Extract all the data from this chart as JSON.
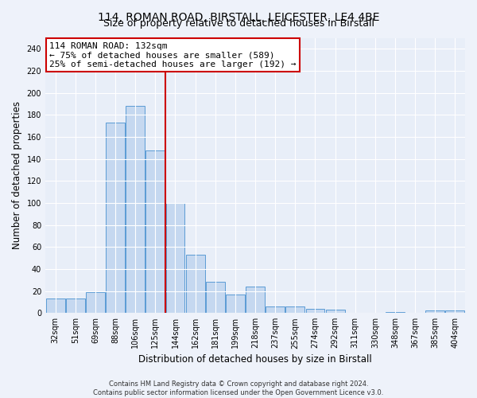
{
  "title1": "114, ROMAN ROAD, BIRSTALL, LEICESTER, LE4 4BE",
  "title2": "Size of property relative to detached houses in Birstall",
  "xlabel": "Distribution of detached houses by size in Birstall",
  "ylabel": "Number of detached properties",
  "categories": [
    "32sqm",
    "51sqm",
    "69sqm",
    "88sqm",
    "106sqm",
    "125sqm",
    "144sqm",
    "162sqm",
    "181sqm",
    "199sqm",
    "218sqm",
    "237sqm",
    "255sqm",
    "274sqm",
    "292sqm",
    "311sqm",
    "330sqm",
    "348sqm",
    "367sqm",
    "385sqm",
    "404sqm"
  ],
  "values": [
    13,
    13,
    19,
    173,
    188,
    148,
    100,
    53,
    28,
    17,
    24,
    6,
    6,
    4,
    3,
    0,
    0,
    1,
    0,
    2,
    2
  ],
  "bar_color": "#c5d8f0",
  "bar_edge_color": "#5b9bd5",
  "vline_color": "#cc0000",
  "vline_pos": 5.5,
  "annotation_line1": "114 ROMAN ROAD: 132sqm",
  "annotation_line2": "← 75% of detached houses are smaller (589)",
  "annotation_line3": "25% of semi-detached houses are larger (192) →",
  "annotation_box_color": "white",
  "annotation_box_edge": "#cc0000",
  "ylim": [
    0,
    250
  ],
  "yticks": [
    0,
    20,
    40,
    60,
    80,
    100,
    120,
    140,
    160,
    180,
    200,
    220,
    240
  ],
  "footer": "Contains HM Land Registry data © Crown copyright and database right 2024.\nContains public sector information licensed under the Open Government Licence v3.0.",
  "background_color": "#eef2fa",
  "plot_bg_color": "#e8eef8",
  "title1_fontsize": 10,
  "title2_fontsize": 9,
  "annotation_fontsize": 8,
  "tick_fontsize": 7,
  "ylabel_fontsize": 8.5,
  "xlabel_fontsize": 8.5,
  "footer_fontsize": 6
}
